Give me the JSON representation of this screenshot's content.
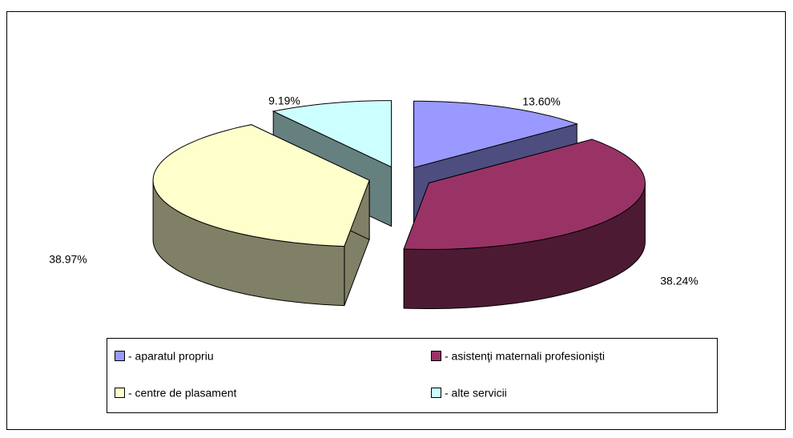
{
  "chart_data": {
    "type": "pie3d",
    "categories": [
      "- aparatul propriu",
      "- asistenţi maternali profesionişti",
      "- centre de plasament",
      "- alte servicii"
    ],
    "values": [
      13.6,
      38.24,
      38.97,
      9.19
    ],
    "value_labels": [
      "13.60%",
      "38.24%",
      "38.97%",
      "9.19%"
    ],
    "colors": [
      "#9999ff",
      "#993366",
      "#ffffcc",
      "#ccffff"
    ],
    "legend": "bottom"
  }
}
